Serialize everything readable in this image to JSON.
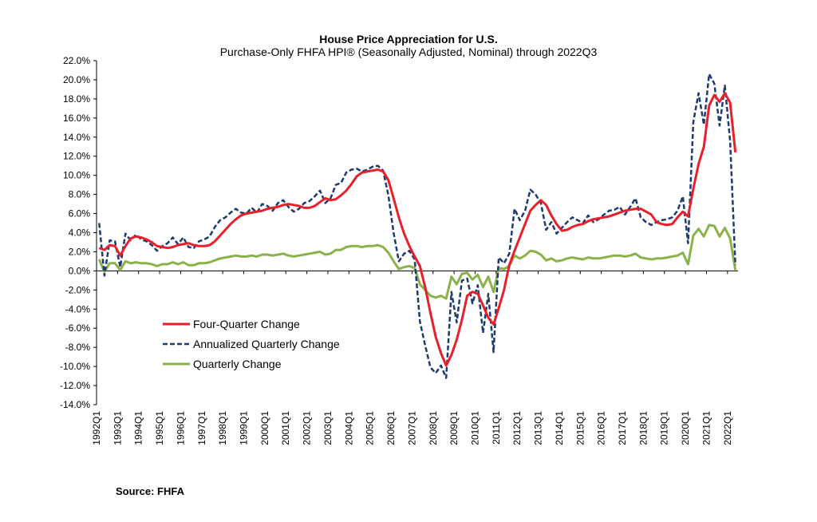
{
  "chart_data": {
    "type": "line",
    "title": "House Price Appreciation for U.S.",
    "subtitle": "Purchase-Only FHFA HPI® (Seasonally Adjusted, Nominal) through 2022Q3",
    "xlabel": "",
    "ylabel": "",
    "ylim": [
      -14,
      22
    ],
    "y_ticks": [
      "-14.0%",
      "-12.0%",
      "-10.0%",
      "-8.0%",
      "-6.0%",
      "-4.0%",
      "-2.0%",
      "0.0%",
      "2.0%",
      "4.0%",
      "6.0%",
      "8.0%",
      "10.0%",
      "12.0%",
      "14.0%",
      "16.0%",
      "18.0%",
      "20.0%",
      "22.0%"
    ],
    "x_tick_labels": [
      "1992Q1",
      "1993Q1",
      "1994Q1",
      "1995Q1",
      "1996Q1",
      "1997Q1",
      "1998Q1",
      "1999Q1",
      "2000Q1",
      "2001Q1",
      "2002Q1",
      "2003Q1",
      "2004Q1",
      "2005Q1",
      "2006Q1",
      "2007Q1",
      "2008Q1",
      "2009Q1",
      "2010Q1",
      "2011Q1",
      "2012Q1",
      "2013Q1",
      "2014Q1",
      "2015Q1",
      "2016Q1",
      "2017Q1",
      "2018Q1",
      "2019Q1",
      "2020Q1",
      "2021Q1",
      "2022Q1"
    ],
    "x_start": "1992Q1",
    "grid": false,
    "legend_position": "lower-left",
    "series": [
      {
        "name": "Four-Quarter Change",
        "color": "#e8202a",
        "style": "solid",
        "values": [
          2.4,
          2.2,
          2.7,
          2.6,
          1.6,
          2.6,
          3.4,
          3.6,
          3.5,
          3.3,
          3.0,
          2.6,
          2.5,
          2.4,
          2.5,
          2.7,
          2.8,
          2.9,
          2.7,
          2.6,
          2.6,
          2.7,
          3.1,
          3.7,
          4.3,
          4.9,
          5.4,
          5.8,
          6.0,
          6.1,
          6.2,
          6.3,
          6.5,
          6.6,
          6.7,
          6.9,
          7.0,
          6.9,
          6.8,
          6.6,
          6.6,
          6.8,
          7.2,
          7.6,
          7.4,
          7.5,
          7.9,
          8.4,
          9.1,
          9.9,
          10.3,
          10.4,
          10.5,
          10.6,
          10.4,
          9.5,
          7.6,
          5.6,
          3.9,
          2.6,
          1.5,
          0.5,
          -1.7,
          -4.4,
          -6.9,
          -8.6,
          -9.9,
          -8.8,
          -7.2,
          -5.1,
          -2.6,
          -2.2,
          -2.4,
          -3.6,
          -4.9,
          -5.6,
          -3.9,
          -2.0,
          0.6,
          2.1,
          3.5,
          4.9,
          6.3,
          6.9,
          7.4,
          6.9,
          5.8,
          4.9,
          4.2,
          4.3,
          4.6,
          4.8,
          4.9,
          5.2,
          5.4,
          5.5,
          5.6,
          5.7,
          5.9,
          6.1,
          6.3,
          6.4,
          6.5,
          6.5,
          6.2,
          5.9,
          5.1,
          4.9,
          4.8,
          4.9,
          5.6,
          6.2,
          5.7,
          8.6,
          11.2,
          13.0,
          17.3,
          18.4,
          17.7,
          18.6,
          17.6,
          12.4
        ]
      },
      {
        "name": "Annualized Quarterly Change",
        "color": "#1f3a6d",
        "style": "dashed",
        "values": [
          5.0,
          -0.5,
          3.2,
          3.1,
          0.4,
          3.9,
          3.2,
          3.8,
          3.3,
          3.1,
          2.7,
          2.1,
          2.6,
          2.9,
          3.5,
          2.8,
          3.5,
          2.5,
          2.4,
          3.1,
          3.3,
          3.6,
          4.6,
          5.3,
          5.6,
          6.1,
          6.5,
          6.1,
          6.0,
          6.6,
          6.1,
          7.0,
          6.8,
          6.3,
          7.1,
          7.4,
          6.7,
          6.2,
          6.5,
          7.1,
          7.3,
          7.8,
          8.4,
          7.1,
          7.6,
          9.0,
          9.2,
          10.3,
          10.6,
          10.7,
          10.4,
          10.6,
          10.9,
          11.0,
          10.5,
          7.9,
          4.0,
          1.0,
          1.8,
          2.1,
          1.2,
          -5.3,
          -7.8,
          -10.1,
          -10.7,
          -9.9,
          -11.2,
          -2.2,
          -5.4,
          -1.0,
          -0.8,
          -3.4,
          -1.5,
          -6.5,
          -2.4,
          -8.5,
          1.4,
          0.8,
          1.8,
          6.5,
          5.3,
          6.3,
          8.5,
          8.0,
          7.1,
          4.3,
          5.1,
          3.9,
          4.5,
          5.1,
          5.6,
          5.3,
          5.0,
          5.8,
          5.1,
          5.4,
          5.9,
          6.3,
          6.4,
          6.7,
          5.9,
          6.7,
          7.6,
          5.6,
          5.1,
          4.8,
          5.1,
          5.3,
          5.4,
          5.6,
          6.3,
          7.8,
          2.9,
          15.6,
          18.6,
          15.3,
          20.6,
          19.6,
          15.2,
          19.4,
          13.6,
          0.6
        ]
      },
      {
        "name": "Quarterly Change",
        "color": "#8bb24a",
        "style": "solid",
        "values": [
          1.2,
          -0.1,
          0.8,
          0.8,
          0.1,
          1.0,
          0.8,
          0.9,
          0.8,
          0.8,
          0.7,
          0.5,
          0.7,
          0.7,
          0.9,
          0.7,
          0.9,
          0.6,
          0.6,
          0.8,
          0.8,
          0.9,
          1.1,
          1.3,
          1.4,
          1.5,
          1.6,
          1.5,
          1.5,
          1.6,
          1.5,
          1.7,
          1.7,
          1.6,
          1.7,
          1.8,
          1.6,
          1.5,
          1.6,
          1.7,
          1.8,
          1.9,
          2.0,
          1.7,
          1.8,
          2.2,
          2.2,
          2.5,
          2.6,
          2.6,
          2.5,
          2.6,
          2.6,
          2.7,
          2.5,
          1.9,
          1.0,
          0.2,
          0.4,
          0.5,
          0.3,
          -1.4,
          -2.0,
          -2.6,
          -2.8,
          -2.6,
          -2.9,
          -0.6,
          -1.4,
          -0.3,
          -0.2,
          -0.9,
          -0.4,
          -1.7,
          -0.6,
          -2.2,
          0.3,
          0.2,
          0.5,
          1.6,
          1.3,
          1.6,
          2.1,
          2.0,
          1.7,
          1.1,
          1.3,
          1.0,
          1.1,
          1.3,
          1.4,
          1.3,
          1.2,
          1.4,
          1.3,
          1.3,
          1.4,
          1.5,
          1.6,
          1.6,
          1.5,
          1.6,
          1.8,
          1.4,
          1.3,
          1.2,
          1.3,
          1.3,
          1.4,
          1.5,
          1.6,
          1.9,
          0.7,
          3.7,
          4.4,
          3.6,
          4.8,
          4.7,
          3.6,
          4.5,
          3.4,
          0.1
        ]
      }
    ]
  },
  "source_text": "Source:  FHFA"
}
